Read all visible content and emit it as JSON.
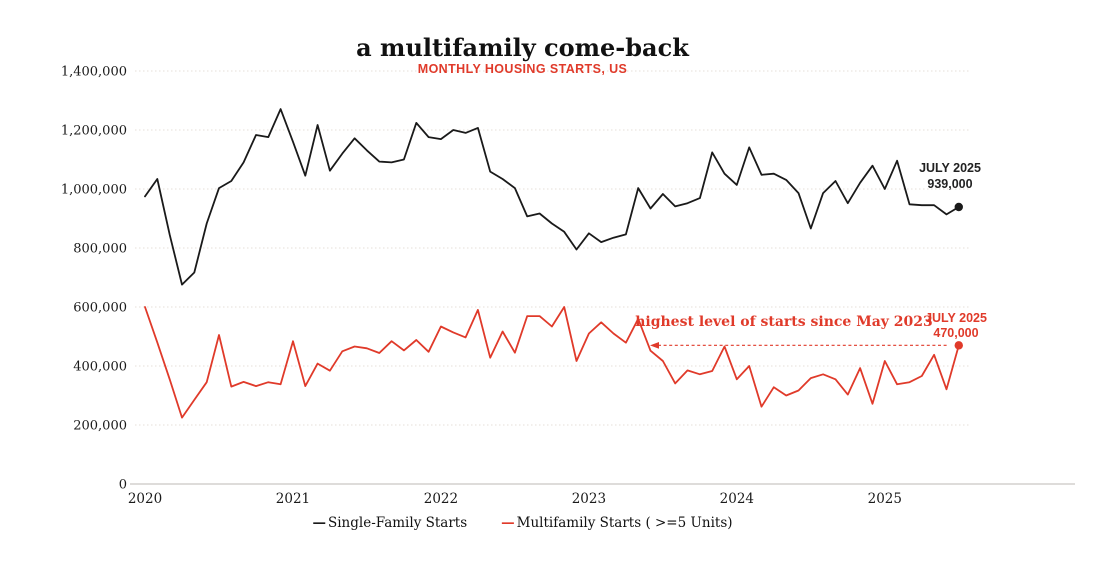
{
  "title": "a multifamily come-back",
  "subtitle": "MONTHLY HOUSING STARTS, US",
  "colors": {
    "accent_red": "#e03a2a",
    "line_black": "#1a1a1a",
    "grid_dotted": "#e6dfd8",
    "axis_line": "#c9c6c3",
    "annotation_black": "#222222"
  },
  "legend": {
    "items": [
      {
        "label": "Single-Family Starts",
        "color": "#1a1a1a"
      },
      {
        "label": "Multifamily Starts ( >=5 Units)",
        "color": "#e03a2a"
      }
    ]
  },
  "chart_data": {
    "type": "line",
    "title": "a multifamily come-back",
    "subtitle": "MONTHLY HOUSING STARTS, US",
    "x_unit": "month",
    "x_start": "2020-01",
    "x_end": "2025-07",
    "x_tick_labels": [
      "2020",
      "2021",
      "2022",
      "2023",
      "2024",
      "2025"
    ],
    "y_ticks": [
      0,
      200000,
      400000,
      600000,
      800000,
      1000000,
      1200000,
      1400000
    ],
    "y_tick_labels": [
      "0",
      "200,000",
      "400,000",
      "600,000",
      "800,000",
      "1,000,000",
      "1,200,000",
      "1,400,000"
    ],
    "ylim": [
      0,
      1400000
    ],
    "grid": "horizontal-dotted",
    "legend_position": "bottom-center",
    "series": [
      {
        "name": "Single-Family Starts",
        "color": "#1a1a1a",
        "values": [
          975000,
          1034000,
          845000,
          676000,
          717000,
          883000,
          1003000,
          1027000,
          1090000,
          1183000,
          1176000,
          1271000,
          1160000,
          1045000,
          1217000,
          1062000,
          1120000,
          1172000,
          1131000,
          1093000,
          1090000,
          1100000,
          1224000,
          1176000,
          1169000,
          1200000,
          1190000,
          1207000,
          1059000,
          1034000,
          1003000,
          907000,
          917000,
          883000,
          855000,
          795000,
          850000,
          820000,
          835000,
          846000,
          1003000,
          934000,
          983000,
          941000,
          952000,
          969000,
          1124000,
          1052000,
          1014000,
          1141000,
          1048000,
          1052000,
          1031000,
          986000,
          866000,
          986000,
          1027000,
          952000,
          1021000,
          1079000,
          1000000,
          1096000,
          948000,
          945000,
          945000,
          914000,
          939000
        ]
      },
      {
        "name": "Multifamily Starts ( >=5 Units)",
        "color": "#e03a2a",
        "values": [
          600000,
          480000,
          355000,
          225000,
          285000,
          345000,
          505000,
          330000,
          346000,
          332000,
          345000,
          338000,
          484000,
          332000,
          408000,
          384000,
          450000,
          466000,
          460000,
          444000,
          484000,
          453000,
          488000,
          448000,
          534000,
          514000,
          497000,
          590000,
          428000,
          517000,
          445000,
          569000,
          569000,
          534000,
          600000,
          417000,
          510000,
          548000,
          510000,
          479000,
          560000,
          452000,
          417000,
          341000,
          385000,
          372000,
          383000,
          466000,
          355000,
          400000,
          262000,
          328000,
          300000,
          317000,
          359000,
          372000,
          355000,
          303000,
          393000,
          272000,
          417000,
          338000,
          345000,
          366000,
          438000,
          321000,
          470000
        ]
      }
    ],
    "annotations": {
      "single_family_last": {
        "line1": "JULY 2025",
        "line2": "939,000",
        "value": 939000
      },
      "multifamily_last": {
        "line1": "JULY 2025",
        "line2": "470,000",
        "value": 470000
      },
      "callout_text": "highest level of starts since May 2023",
      "reference_level": 470000,
      "reference_from": "2023-05"
    }
  }
}
